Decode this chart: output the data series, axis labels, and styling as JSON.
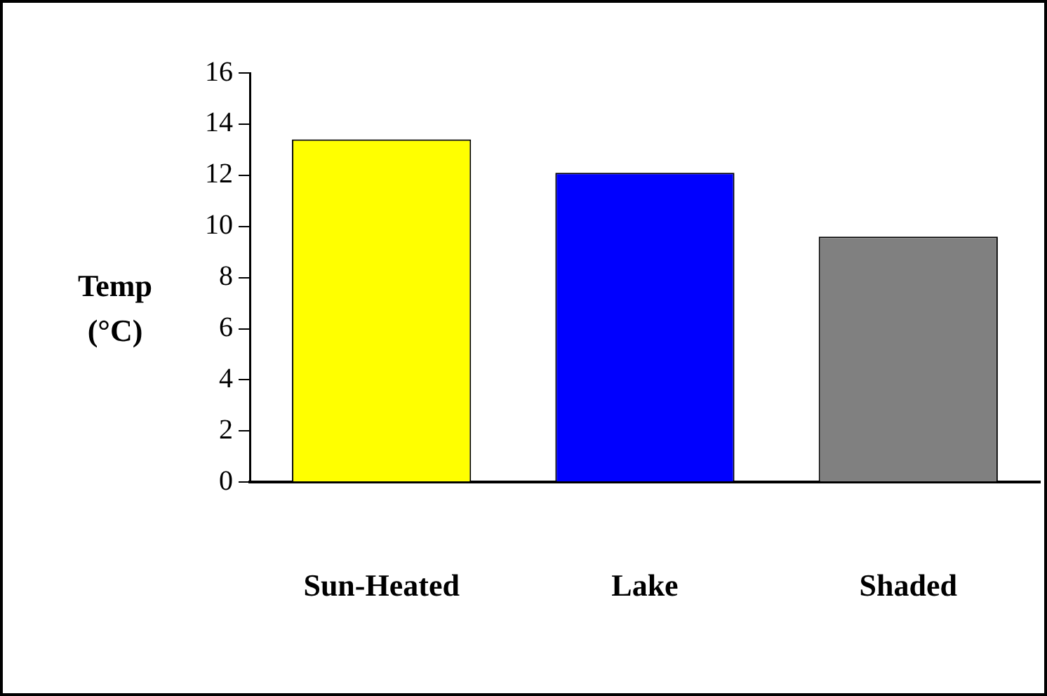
{
  "chart_data": {
    "type": "bar",
    "ylabel": "Temp (°C)",
    "categories": [
      "Sun-Heated",
      "Lake",
      "Shaded"
    ],
    "values": [
      13.4,
      12.1,
      9.6
    ],
    "colors": [
      "#ffff00",
      "#0000ff",
      "#808080"
    ],
    "ylim": [
      0,
      16
    ],
    "yticks": [
      0,
      2,
      4,
      6,
      8,
      10,
      12,
      14,
      16
    ],
    "grid": false,
    "legend": false
  }
}
